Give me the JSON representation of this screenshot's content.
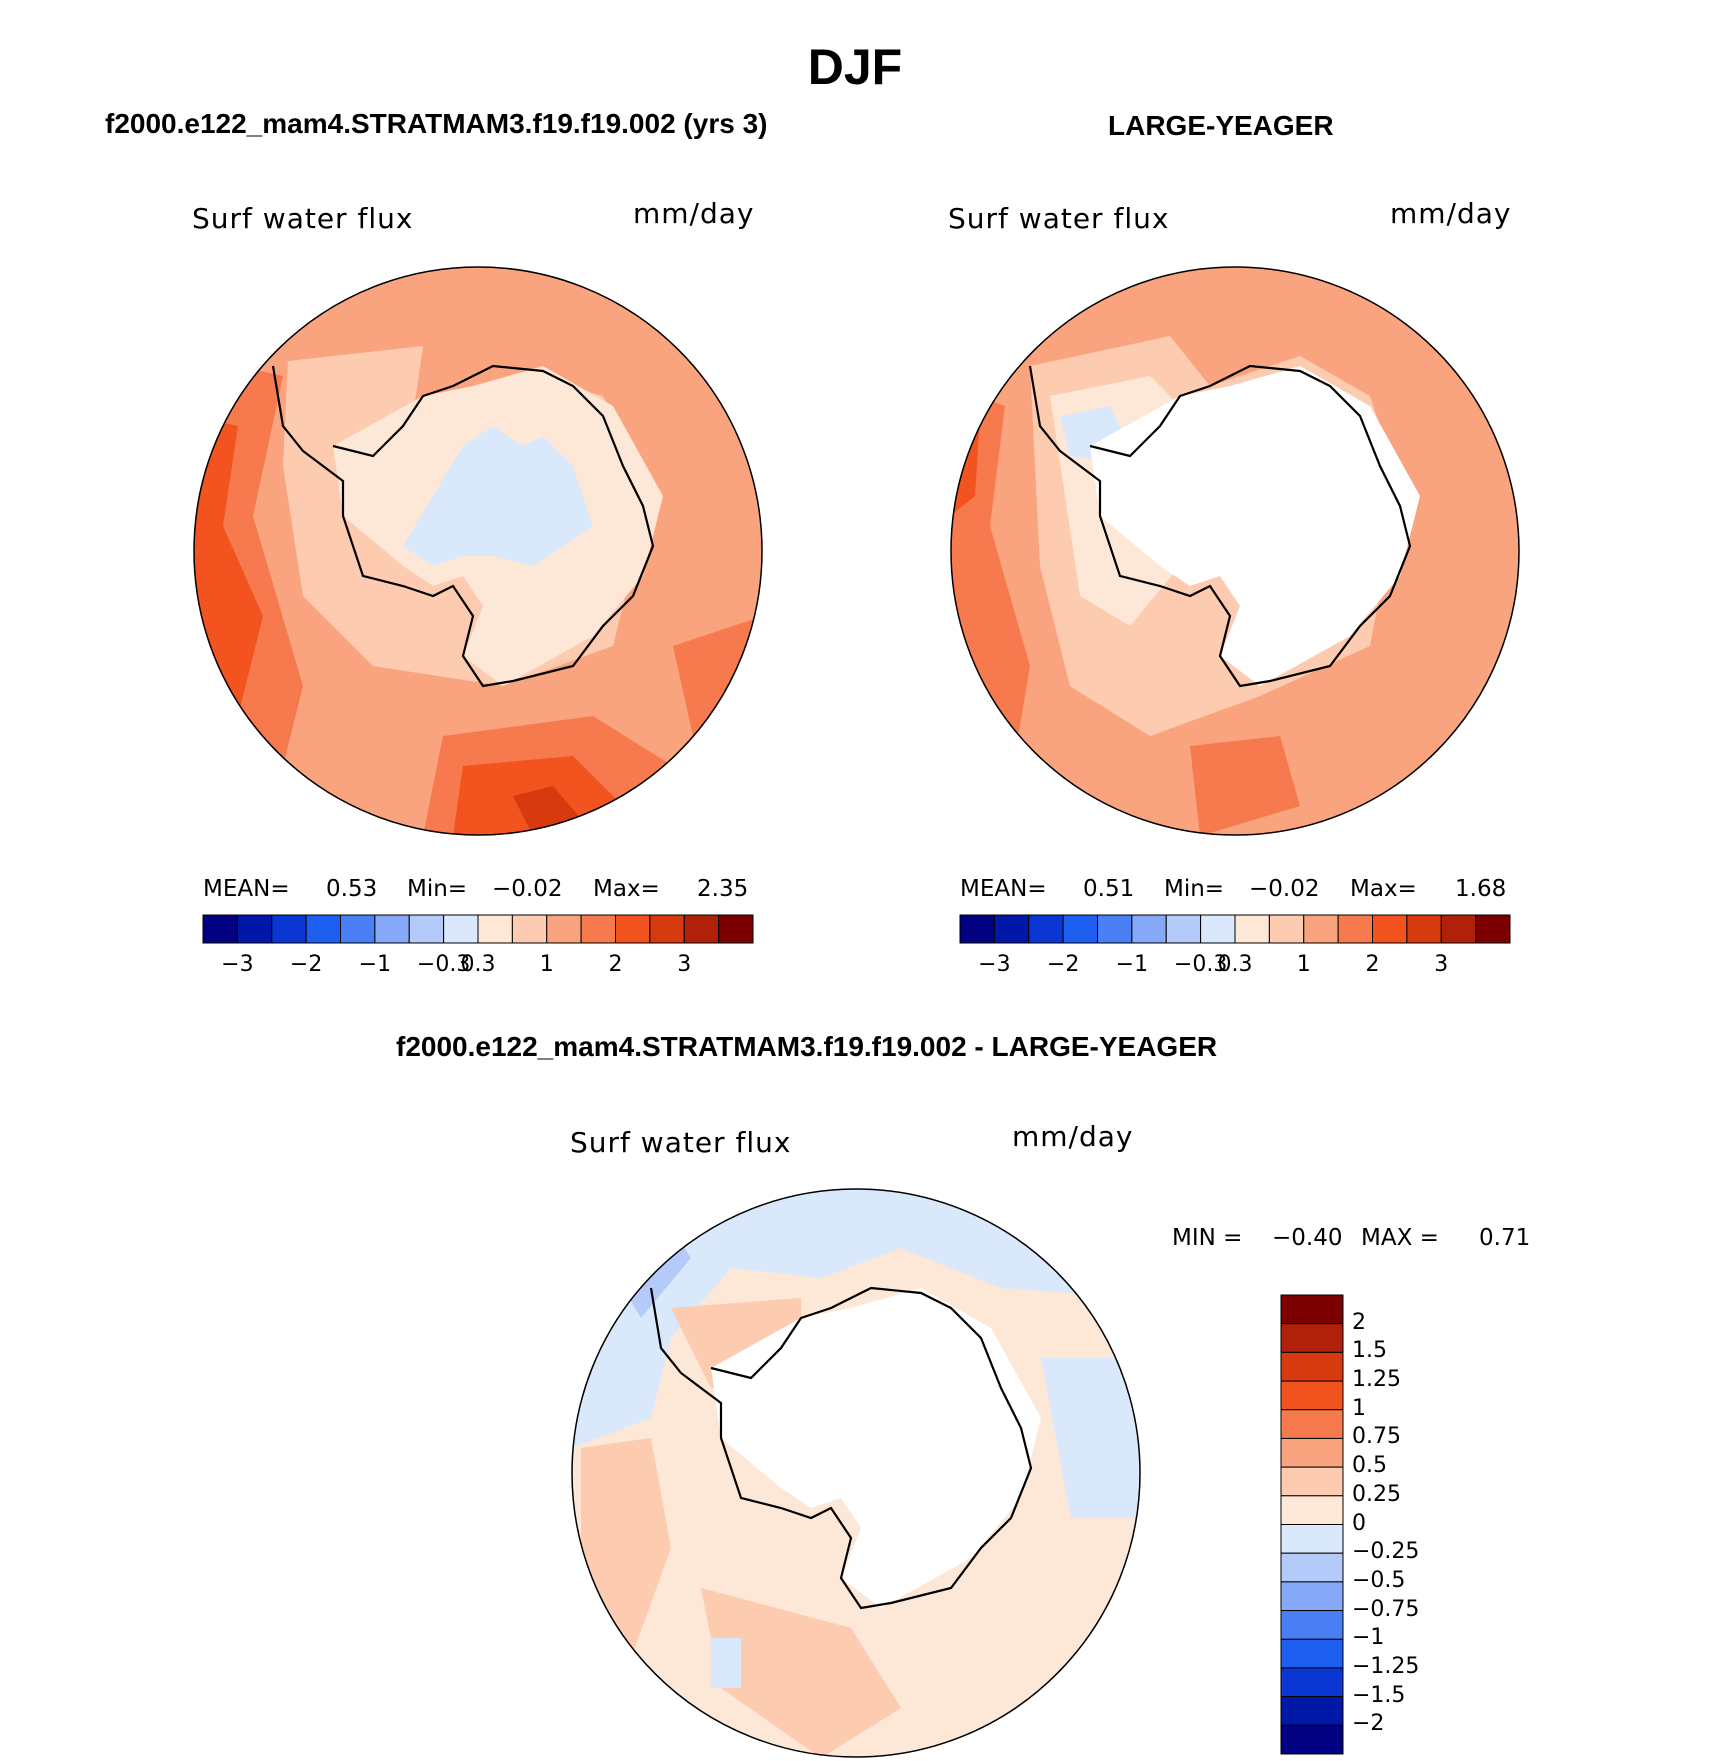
{
  "figure": {
    "title": "DJF",
    "top_left_title": "f2000.e122_mam4.STRATMAM3.f19.f19.002 (yrs 3)",
    "top_right_title": "LARGE-YEAGER",
    "bottom_title": "f2000.e122_mam4.STRATMAM3.f19.f19.002 - LARGE-YEAGER"
  },
  "panels": [
    {
      "id": "model",
      "variable": "Surf water flux",
      "units": "mm/day",
      "stats": {
        "mean_label": "MEAN=",
        "mean": "0.53",
        "min_label": "Min=",
        "min": "−0.02",
        "max_label": "Max=",
        "max": "2.35"
      }
    },
    {
      "id": "obs",
      "variable": "Surf water flux",
      "units": "mm/day",
      "stats": {
        "mean_label": "MEAN=",
        "mean": "0.51",
        "min_label": "Min=",
        "min": "−0.02",
        "max_label": "Max=",
        "max": "1.68"
      }
    },
    {
      "id": "diff",
      "variable": "Surf water flux",
      "units": "mm/day",
      "stats": {
        "min_label": "MIN =",
        "min": "−0.40",
        "max_label": "MAX =",
        "max": "0.71"
      }
    }
  ],
  "colorbar_main": {
    "colors": [
      "#000080",
      "#0018a8",
      "#0a36d4",
      "#1e5ef0",
      "#4a7ff5",
      "#86a8f8",
      "#b4cbf9",
      "#d9e9fb",
      "#fde7d6",
      "#fccbb0",
      "#f9a47e",
      "#f67a4d",
      "#f2531f",
      "#d83a0f",
      "#b12008",
      "#7c0000"
    ],
    "tick_labels": [
      "−3",
      "−2",
      "−1",
      "−0.3",
      "0.3",
      "1",
      "2",
      "3"
    ],
    "tick_boundaries": [
      1,
      3,
      5,
      7,
      8,
      10,
      12,
      14
    ]
  },
  "colorbar_diff": {
    "colors": [
      "#7c0000",
      "#b12008",
      "#d83a0f",
      "#f2531f",
      "#f67a4d",
      "#f9a47e",
      "#fccbb0",
      "#fde7d6",
      "#d9e9fb",
      "#b4cbf9",
      "#86a8f8",
      "#4a7ff5",
      "#1e5ef0",
      "#0a36d4",
      "#0018a8",
      "#000080"
    ],
    "tick_labels": [
      "2",
      "1.5",
      "1.25",
      "1",
      "0.75",
      "0.5",
      "0.25",
      "0",
      "−0.25",
      "−0.5",
      "−0.75",
      "−1",
      "−1.25",
      "−1.5",
      "−2"
    ]
  },
  "map_colors": {
    "model": {
      "base": "#f9a47e",
      "ring": "#f67a4d",
      "hot": "#f2531f",
      "hotter": "#d83a0f",
      "coast": "#fccbb0",
      "land": "#fde7d6",
      "land_low": "#d9e9fb"
    },
    "obs": {
      "base": "#f9a47e",
      "ring": "#f67a4d",
      "hot": "#f2531f",
      "coast": "#fccbb0",
      "light": "#fde7d6",
      "blue": "#d9e9fb"
    },
    "diff": {
      "base": "#fde7d6",
      "pos": "#fccbb0",
      "neg": "#d9e9fb",
      "neg2": "#b4cbf9"
    }
  }
}
